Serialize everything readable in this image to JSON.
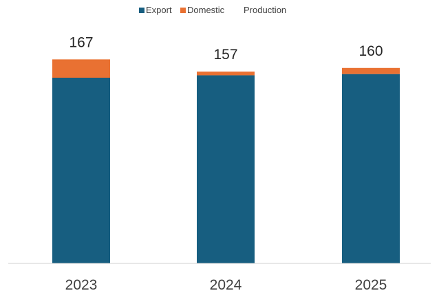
{
  "chart_data": {
    "type": "bar",
    "stacked": true,
    "categories": [
      "2023",
      "2024",
      "2025"
    ],
    "series": [
      {
        "name": "Export",
        "values": [
          152,
          154,
          155
        ],
        "color": "#175E80"
      },
      {
        "name": "Domestic",
        "values": [
          15,
          3,
          5
        ],
        "color": "#E97132"
      }
    ],
    "totals_series": {
      "name": "Production",
      "values": [
        167,
        157,
        160
      ]
    },
    "data_labels": [
      "167",
      "157",
      "160"
    ],
    "legend_position": "top",
    "grid": false,
    "ylim": [
      0,
      170
    ],
    "axis_color": "#D9D9D9"
  }
}
